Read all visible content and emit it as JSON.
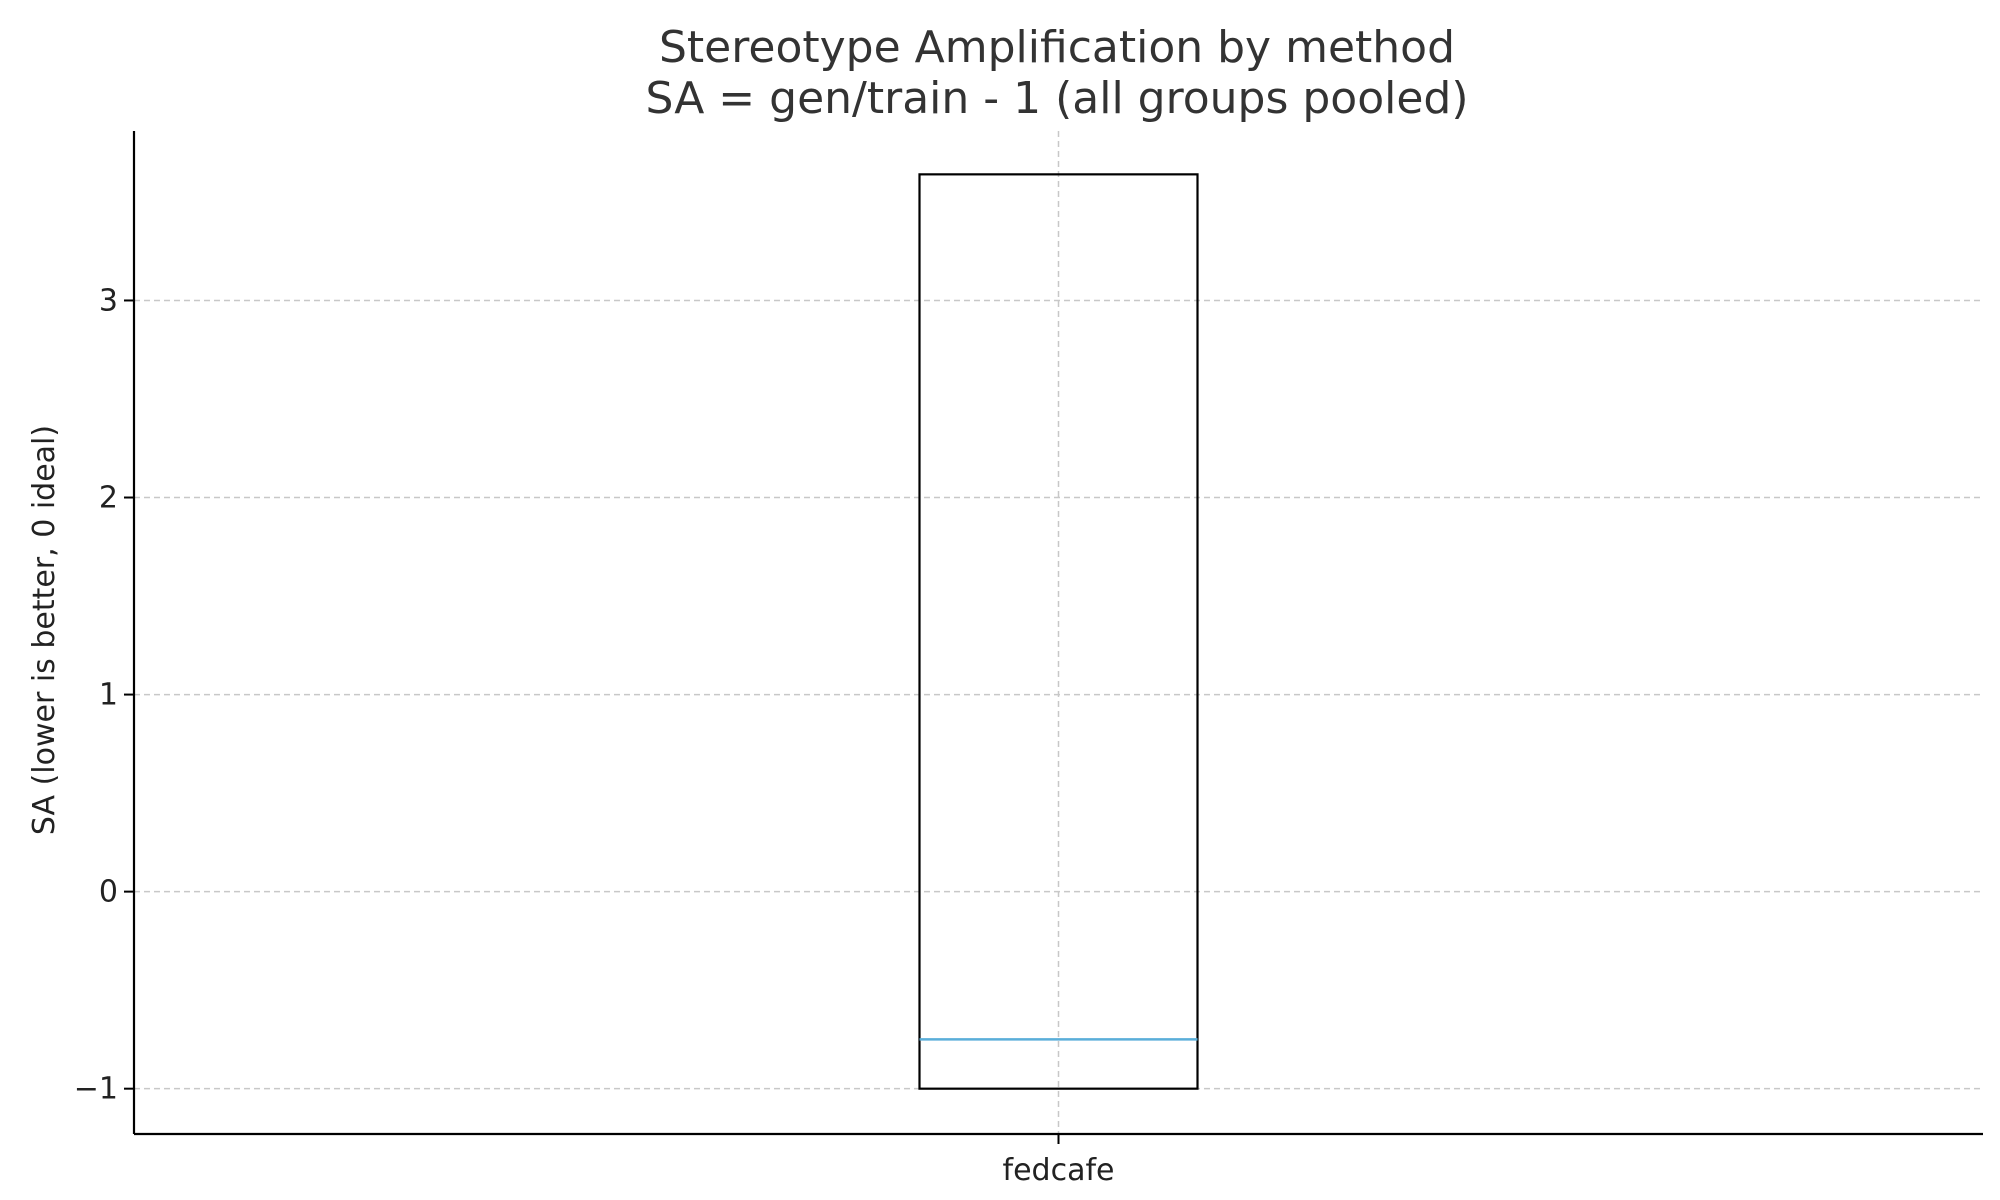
{
  "chart_data": {
    "type": "box",
    "title": [
      "Stereotype Amplification by method",
      "SA = gen/train - 1 (all groups pooled)"
    ],
    "xlabel": "",
    "ylabel": "SA (lower is better, 0 ideal)",
    "categories": [
      "fedcafe"
    ],
    "boxes": [
      {
        "category": "fedcafe",
        "q1": -1.0,
        "median": -0.75,
        "q3": 3.64
      }
    ],
    "ylim": [
      -1.23,
      3.86
    ],
    "yticks": [
      -1,
      0,
      1,
      2,
      3
    ],
    "ytick_labels": [
      "−1",
      "0",
      "1",
      "2",
      "3"
    ],
    "grid": true,
    "colors": {
      "box_edge": "#000000",
      "median": "#5aaed9",
      "grid": "#c8c8c8",
      "axis": "#000000"
    }
  }
}
